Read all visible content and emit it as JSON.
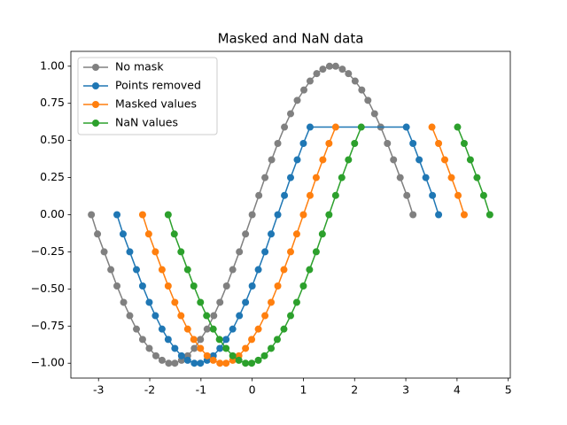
{
  "chart_data": {
    "type": "line",
    "title": "Masked and NaN data",
    "xlim": [
      -3.54,
      5.04
    ],
    "ylim": [
      -1.1,
      1.1
    ],
    "xticks": [
      -3,
      -2,
      -1,
      0,
      1,
      2,
      3,
      4,
      5
    ],
    "yticks": [
      {
        "value": -1,
        "label": "−1.00"
      },
      {
        "value": -0.75,
        "label": "−0.75"
      },
      {
        "value": -0.5,
        "label": "−0.50"
      },
      {
        "value": -0.25,
        "label": "−0.25"
      },
      {
        "value": 0,
        "label": "0.00"
      },
      {
        "value": 0.25,
        "label": "0.25"
      },
      {
        "value": 0.5,
        "label": "0.50"
      },
      {
        "value": 0.75,
        "label": "0.75"
      },
      {
        "value": 1,
        "label": "1.00"
      }
    ],
    "legend": "upper left",
    "grid": false,
    "series": [
      {
        "name": "No mask",
        "color": "#808080",
        "x": [
          -3.14,
          -3.02,
          -2.89,
          -2.76,
          -2.64,
          -2.51,
          -2.39,
          -2.26,
          -2.14,
          -2.01,
          -1.88,
          -1.76,
          -1.63,
          -1.51,
          -1.38,
          -1.26,
          -1.13,
          -1.01,
          -0.88,
          -0.75,
          -0.63,
          -0.5,
          -0.38,
          -0.25,
          -0.13,
          0,
          0.13,
          0.25,
          0.38,
          0.5,
          0.63,
          0.75,
          0.88,
          1.01,
          1.13,
          1.26,
          1.38,
          1.51,
          1.63,
          1.76,
          1.88,
          2.01,
          2.14,
          2.26,
          2.39,
          2.51,
          2.64,
          2.76,
          2.89,
          3.02,
          3.14
        ],
        "values": [
          0,
          -0.13,
          -0.25,
          -0.37,
          -0.48,
          -0.59,
          -0.68,
          -0.77,
          -0.84,
          -0.9,
          -0.95,
          -0.98,
          -1.0,
          -1.0,
          -0.98,
          -0.95,
          -0.9,
          -0.84,
          -0.77,
          -0.68,
          -0.59,
          -0.48,
          -0.37,
          -0.25,
          -0.13,
          0,
          0.13,
          0.25,
          0.37,
          0.48,
          0.59,
          0.68,
          0.77,
          0.84,
          0.9,
          0.95,
          0.98,
          1.0,
          1.0,
          0.98,
          0.95,
          0.9,
          0.84,
          0.77,
          0.68,
          0.59,
          0.48,
          0.37,
          0.25,
          0.13,
          0
        ]
      },
      {
        "name": "Points removed",
        "color": "#1f77b4",
        "x": [
          -2.64,
          -2.52,
          -2.39,
          -2.26,
          -2.14,
          -2.01,
          -1.89,
          -1.76,
          -1.64,
          -1.51,
          -1.38,
          -1.26,
          -1.13,
          -1.01,
          -0.88,
          -0.76,
          -0.63,
          -0.51,
          -0.38,
          -0.25,
          -0.13,
          0.0,
          0.12,
          0.25,
          0.37,
          0.5,
          0.63,
          0.75,
          0.88,
          1.0,
          1.13,
          3.01,
          3.14,
          3.26,
          3.39,
          3.52,
          3.64
        ],
        "values": [
          0,
          -0.13,
          -0.25,
          -0.37,
          -0.48,
          -0.59,
          -0.68,
          -0.77,
          -0.84,
          -0.9,
          -0.95,
          -0.98,
          -1.0,
          -1.0,
          -0.98,
          -0.95,
          -0.9,
          -0.84,
          -0.77,
          -0.68,
          -0.59,
          -0.48,
          -0.37,
          -0.25,
          -0.13,
          0,
          0.13,
          0.25,
          0.37,
          0.48,
          0.59,
          0.59,
          0.48,
          0.37,
          0.25,
          0.13,
          0
        ]
      },
      {
        "name": "Masked values",
        "color": "#ff7f0e",
        "x": [
          -2.14,
          -2.02,
          -1.89,
          -1.76,
          -1.64,
          -1.51,
          -1.39,
          -1.26,
          -1.14,
          -1.01,
          -0.88,
          -0.76,
          -0.63,
          -0.51,
          -0.38,
          -0.26,
          -0.13,
          -0.01,
          0.12,
          0.25,
          0.37,
          0.5,
          0.62,
          0.75,
          0.87,
          1.0,
          1.13,
          1.25,
          1.38,
          1.5,
          1.63,
          1.75,
          1.88,
          2.01,
          2.13,
          2.26,
          2.38,
          2.51,
          2.63,
          2.76,
          2.88,
          3.01,
          3.14,
          3.26,
          3.39,
          3.51,
          3.64,
          3.76,
          3.89,
          4.02,
          4.14
        ],
        "values": [
          0,
          -0.13,
          -0.25,
          -0.37,
          -0.48,
          -0.59,
          -0.68,
          -0.77,
          -0.84,
          -0.9,
          -0.95,
          -0.98,
          -1.0,
          -1.0,
          -0.98,
          -0.95,
          -0.9,
          -0.84,
          -0.77,
          -0.68,
          -0.59,
          -0.48,
          -0.37,
          -0.25,
          -0.13,
          0,
          0.13,
          0.25,
          0.37,
          0.48,
          0.59,
          null,
          null,
          null,
          null,
          null,
          null,
          null,
          null,
          null,
          null,
          null,
          null,
          null,
          null,
          0.59,
          0.48,
          0.37,
          0.25,
          0.13,
          0
        ]
      },
      {
        "name": "NaN values",
        "color": "#2ca02c",
        "x": [
          -1.64,
          -1.52,
          -1.39,
          -1.26,
          -1.14,
          -1.01,
          -0.89,
          -0.76,
          -0.64,
          -0.51,
          -0.38,
          -0.26,
          -0.13,
          -0.01,
          0.12,
          0.24,
          0.37,
          0.49,
          0.62,
          0.75,
          0.87,
          1.0,
          1.12,
          1.25,
          1.37,
          1.5,
          1.63,
          1.75,
          1.88,
          2.0,
          2.13,
          2.25,
          2.38,
          2.51,
          2.63,
          2.76,
          2.88,
          3.01,
          3.14,
          3.26,
          3.39,
          3.51,
          3.64,
          3.76,
          3.89,
          4.01,
          4.14,
          4.26,
          4.39,
          4.52,
          4.64
        ],
        "values": [
          0,
          -0.13,
          -0.25,
          -0.37,
          -0.48,
          -0.59,
          -0.68,
          -0.77,
          -0.84,
          -0.9,
          -0.95,
          -0.98,
          -1.0,
          -1.0,
          -0.98,
          -0.95,
          -0.9,
          -0.84,
          -0.77,
          -0.68,
          -0.59,
          -0.48,
          -0.37,
          -0.25,
          -0.13,
          0,
          0.13,
          0.25,
          0.37,
          0.48,
          0.59,
          null,
          null,
          null,
          null,
          null,
          null,
          null,
          null,
          null,
          null,
          null,
          null,
          null,
          null,
          0.59,
          0.48,
          0.37,
          0.25,
          0.13,
          0
        ]
      }
    ]
  }
}
